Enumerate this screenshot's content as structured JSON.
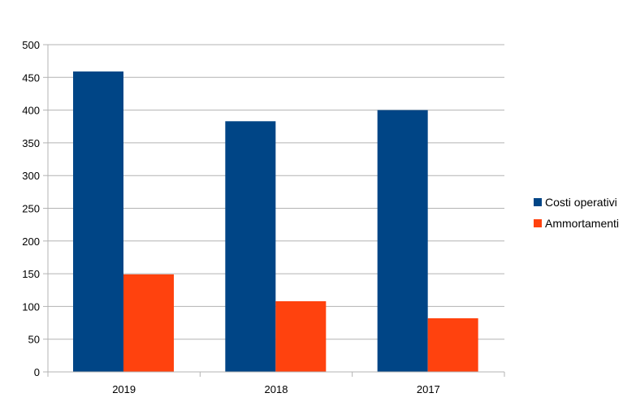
{
  "chart_data": {
    "type": "bar",
    "categories": [
      "2019",
      "2018",
      "2017"
    ],
    "series": [
      {
        "name": "Costi operativi",
        "values": [
          459,
          383,
          400
        ],
        "color": "#004586"
      },
      {
        "name": "Ammortamenti",
        "values": [
          149,
          108,
          82
        ],
        "color": "#ff420e"
      }
    ],
    "ylim": [
      0,
      500
    ],
    "yticks": [
      0,
      50,
      100,
      150,
      200,
      250,
      300,
      350,
      400,
      450,
      500
    ],
    "grid": true,
    "legend_position": "right"
  }
}
